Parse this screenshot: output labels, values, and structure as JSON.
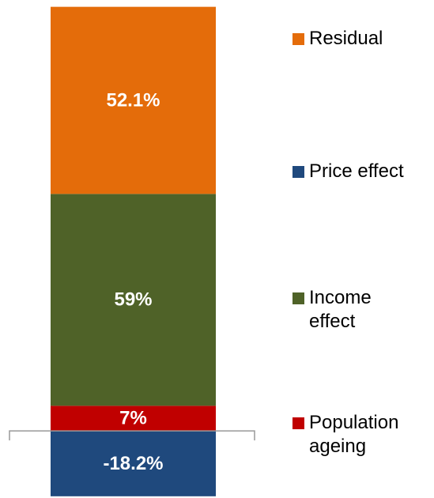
{
  "chart_data": {
    "type": "stacked_bar",
    "categories": [
      null
    ],
    "series": [
      {
        "name": "Residual",
        "color": "#e46c0a",
        "values": [
          52.1
        ],
        "value_labels": [
          "52.1%"
        ]
      },
      {
        "name": "Price effect",
        "color": "#1f497d",
        "values": [
          -18.2
        ],
        "value_labels": [
          "-18.2%"
        ]
      },
      {
        "name": "Income effect",
        "color": "#4f6228",
        "values": [
          59
        ],
        "value_labels": [
          "59%"
        ]
      },
      {
        "name": "Population ageing",
        "color": "#c00000",
        "values": [
          7
        ],
        "value_labels": [
          "7%"
        ]
      }
    ],
    "ylim": [
      -20,
      120
    ],
    "legend": "right"
  }
}
